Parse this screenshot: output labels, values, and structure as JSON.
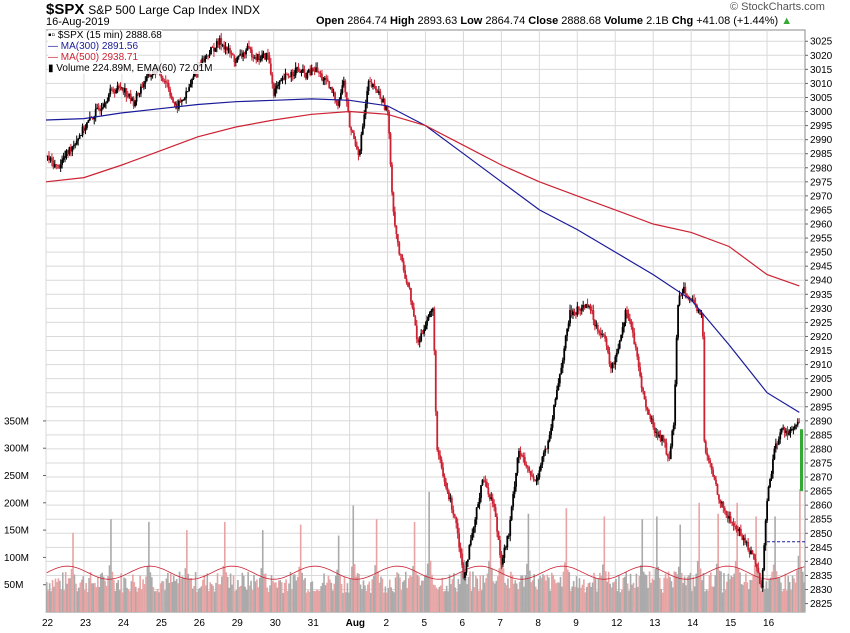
{
  "header": {
    "symbol": "$SPX",
    "name": "S&P 500 Large Cap Index",
    "exchange": "INDX",
    "date": "16-Aug-2019",
    "open_label": "Open",
    "open": "2864.74",
    "high_label": "High",
    "high": "2893.63",
    "low_label": "Low",
    "low": "2864.74",
    "close_label": "Close",
    "close": "2888.68",
    "volume_label": "Volume",
    "volume": "2.1B",
    "chg_label": "Chg",
    "chg": "+41.08 (+1.44%)",
    "chg_arrow": "▲",
    "brand": "© StockCharts.com"
  },
  "legend": {
    "price": "$SPX (15 min) 2888.68",
    "ma300": "MA(300) 2891.56",
    "ma500": "MA(500) 2938.71",
    "volume": "Volume 224.89M, EMA(60) 72.01M"
  },
  "colors": {
    "ma300": "#1a1a9a",
    "ma500": "#cc2233",
    "up_candle": "#000000",
    "down_candle": "#cc2233",
    "volume": "#aaaaaa",
    "volume_down": "#e8a4a4",
    "grid": "#d9d9d9",
    "change_bar": "#33aa33",
    "chg_arrow": "#33aa33"
  },
  "chart_data": {
    "type": "candlestick",
    "x_labels": [
      "22",
      "23",
      "24",
      "25",
      "26",
      "29",
      "30",
      "31",
      "Aug",
      "2",
      "5",
      "6",
      "7",
      "8",
      "9",
      "12",
      "13",
      "14",
      "15",
      "16"
    ],
    "price_ticks": [
      "3025",
      "3020",
      "3015",
      "3010",
      "3005",
      "3000",
      "2995",
      "2990",
      "2985",
      "2980",
      "2975",
      "2970",
      "2965",
      "2960",
      "2955",
      "2950",
      "2945",
      "2940",
      "2935",
      "2930",
      "2925",
      "2920",
      "2915",
      "2910",
      "2905",
      "2900",
      "2895",
      "2890",
      "2885",
      "2880",
      "2875",
      "2870",
      "2865",
      "2860",
      "2855",
      "2850",
      "2845",
      "2840",
      "2835",
      "2830",
      "2825"
    ],
    "price_range": [
      2822,
      3029
    ],
    "volume_ticks": [
      "350M",
      "300M",
      "250M",
      "200M",
      "150M",
      "100M",
      "50M"
    ],
    "volume_range": [
      0,
      370
    ],
    "price_path": [
      [
        0,
        2984
      ],
      [
        0.3,
        2980
      ],
      [
        0.6,
        2986
      ],
      [
        0.85,
        2991
      ],
      [
        1.1,
        2996
      ],
      [
        1.4,
        3001
      ],
      [
        1.7,
        3007
      ],
      [
        2.0,
        3009
      ],
      [
        2.3,
        3003
      ],
      [
        2.6,
        3011
      ],
      [
        2.9,
        3015
      ],
      [
        3.2,
        3010
      ],
      [
        3.4,
        3001
      ],
      [
        3.7,
        3006
      ],
      [
        4.0,
        3016
      ],
      [
        4.3,
        3021
      ],
      [
        4.6,
        3025
      ],
      [
        5.0,
        3018
      ],
      [
        5.3,
        3022
      ],
      [
        5.6,
        3019
      ],
      [
        5.85,
        3020
      ],
      [
        6.0,
        3007
      ],
      [
        6.3,
        3012
      ],
      [
        6.6,
        3015
      ],
      [
        6.85,
        3013
      ],
      [
        7.1,
        3015
      ],
      [
        7.4,
        3010
      ],
      [
        7.7,
        3003
      ],
      [
        7.85,
        3011
      ],
      [
        8.0,
        2995
      ],
      [
        8.25,
        2985
      ],
      [
        8.5,
        3010
      ],
      [
        8.75,
        3007
      ],
      [
        9.0,
        3000
      ],
      [
        9.15,
        2965
      ],
      [
        9.3,
        2950
      ],
      [
        9.6,
        2935
      ],
      [
        9.8,
        2917
      ],
      [
        10.0,
        2925
      ],
      [
        10.2,
        2930
      ],
      [
        10.3,
        2880
      ],
      [
        10.5,
        2868
      ],
      [
        10.8,
        2855
      ],
      [
        11.0,
        2835
      ],
      [
        11.25,
        2850
      ],
      [
        11.5,
        2870
      ],
      [
        11.8,
        2860
      ],
      [
        12.0,
        2840
      ],
      [
        12.2,
        2850
      ],
      [
        12.45,
        2880
      ],
      [
        12.7,
        2872
      ],
      [
        12.9,
        2868
      ],
      [
        13.1,
        2878
      ],
      [
        13.25,
        2882
      ],
      [
        13.45,
        2900
      ],
      [
        13.65,
        2915
      ],
      [
        13.8,
        2928
      ],
      [
        14.1,
        2930
      ],
      [
        14.3,
        2932
      ],
      [
        14.45,
        2925
      ],
      [
        14.7,
        2920
      ],
      [
        14.9,
        2908
      ],
      [
        15.05,
        2915
      ],
      [
        15.3,
        2930
      ],
      [
        15.45,
        2922
      ],
      [
        15.6,
        2910
      ],
      [
        15.8,
        2895
      ],
      [
        16.1,
        2885
      ],
      [
        16.3,
        2883
      ],
      [
        16.4,
        2875
      ],
      [
        16.55,
        2890
      ],
      [
        16.65,
        2932
      ],
      [
        16.8,
        2938
      ],
      [
        17.1,
        2930
      ],
      [
        17.3,
        2928
      ],
      [
        17.35,
        2880
      ],
      [
        17.55,
        2872
      ],
      [
        17.8,
        2860
      ],
      [
        18.0,
        2855
      ],
      [
        18.3,
        2850
      ],
      [
        18.5,
        2845
      ],
      [
        18.7,
        2840
      ],
      [
        18.85,
        2830
      ],
      [
        19.0,
        2862
      ],
      [
        19.2,
        2880
      ],
      [
        19.4,
        2887
      ],
      [
        19.6,
        2886
      ],
      [
        19.85,
        2889
      ]
    ],
    "series": [
      {
        "name": "MA(300)",
        "values": [
          [
            0,
            2997
          ],
          [
            1,
            2997.5
          ],
          [
            2,
            2999.5
          ],
          [
            3,
            3001
          ],
          [
            4,
            3002.5
          ],
          [
            5,
            3003.5
          ],
          [
            6,
            3004
          ],
          [
            7,
            3004.5
          ],
          [
            8,
            3004
          ],
          [
            9,
            3002
          ],
          [
            10,
            2995
          ],
          [
            11,
            2985
          ],
          [
            12,
            2975
          ],
          [
            13,
            2965
          ],
          [
            14,
            2958
          ],
          [
            15,
            2950
          ],
          [
            16,
            2942
          ],
          [
            17,
            2933
          ],
          [
            18,
            2917
          ],
          [
            19,
            2900
          ],
          [
            19.85,
            2893
          ]
        ]
      },
      {
        "name": "MA(500)",
        "values": [
          [
            0,
            2975
          ],
          [
            1,
            2976.5
          ],
          [
            2,
            2981
          ],
          [
            3,
            2986
          ],
          [
            4,
            2991
          ],
          [
            5,
            2994.5
          ],
          [
            6,
            2997
          ],
          [
            7,
            2999
          ],
          [
            8,
            3000
          ],
          [
            9,
            2999
          ],
          [
            10,
            2995
          ],
          [
            11,
            2988
          ],
          [
            12,
            2981
          ],
          [
            13,
            2975
          ],
          [
            14,
            2970
          ],
          [
            15,
            2965
          ],
          [
            16,
            2960
          ],
          [
            17,
            2957
          ],
          [
            18,
            2952
          ],
          [
            19,
            2942
          ],
          [
            19.85,
            2938
          ]
        ]
      }
    ],
    "volume_spikes": [
      [
        0.7,
        145
      ],
      [
        1.7,
        170
      ],
      [
        2.7,
        165
      ],
      [
        3.7,
        150
      ],
      [
        4.7,
        165
      ],
      [
        5.7,
        150
      ],
      [
        6.7,
        160
      ],
      [
        7.7,
        140
      ],
      [
        8.1,
        195
      ],
      [
        8.7,
        170
      ],
      [
        9.7,
        165
      ],
      [
        10.1,
        220
      ],
      [
        11.0,
        190
      ],
      [
        11.7,
        200
      ],
      [
        12.0,
        230
      ],
      [
        12.7,
        180
      ],
      [
        13.7,
        190
      ],
      [
        14.7,
        175
      ],
      [
        15.7,
        170
      ],
      [
        16.1,
        175
      ],
      [
        16.7,
        160
      ],
      [
        17.2,
        200
      ],
      [
        17.7,
        180
      ],
      [
        18.2,
        200
      ],
      [
        18.7,
        175
      ],
      [
        19.2,
        175
      ],
      [
        19.85,
        225
      ]
    ],
    "volume_ema_level": 72,
    "grid": true,
    "legend_position": "top-left"
  }
}
